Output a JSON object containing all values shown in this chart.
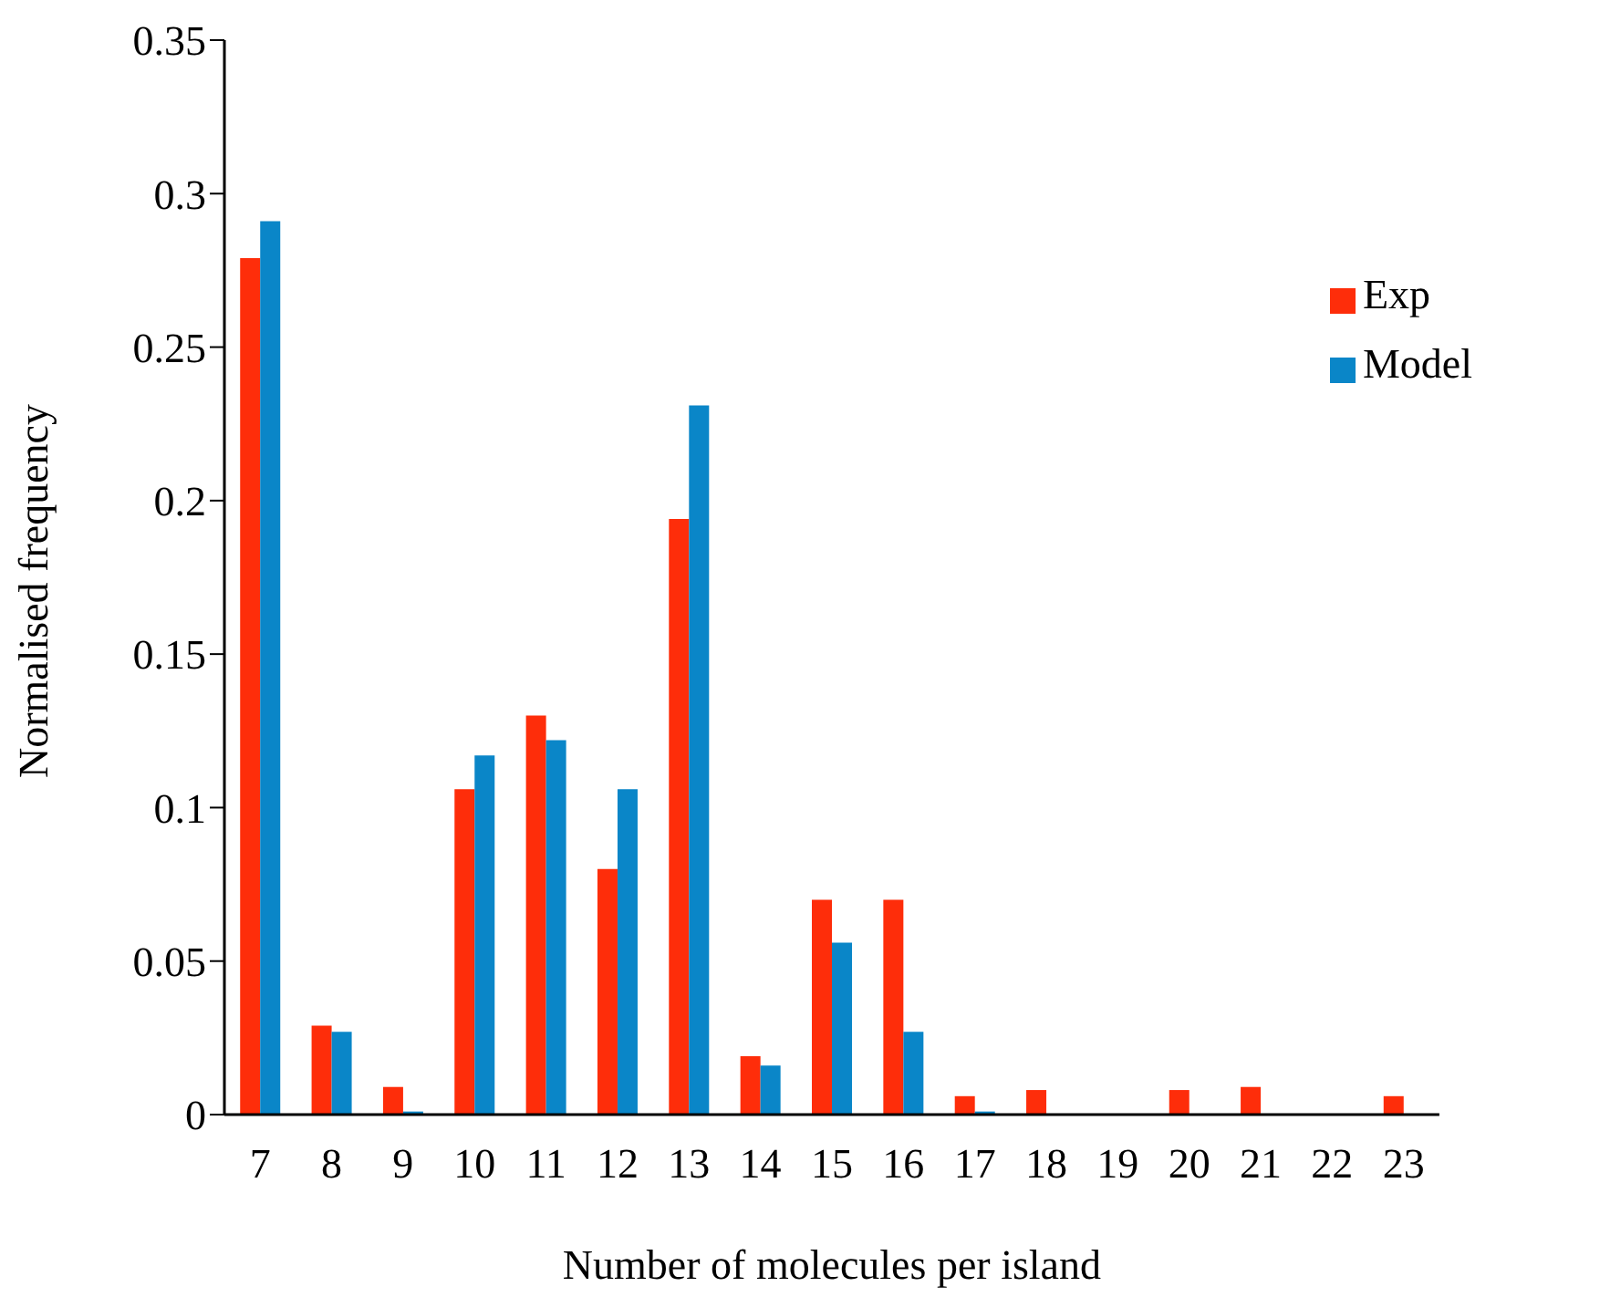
{
  "chart_data": {
    "type": "bar",
    "xlabel": "Number of molecules per island",
    "ylabel": "Normalised frequency",
    "categories": [
      "7",
      "8",
      "9",
      "10",
      "11",
      "12",
      "13",
      "14",
      "15",
      "16",
      "17",
      "18",
      "19",
      "20",
      "21",
      "22",
      "23"
    ],
    "series": [
      {
        "name": "Exp",
        "color": "#fe2d0a",
        "values": [
          0.279,
          0.029,
          0.009,
          0.106,
          0.13,
          0.08,
          0.194,
          0.019,
          0.07,
          0.07,
          0.006,
          0.008,
          0,
          0.008,
          0.009,
          0,
          0.006
        ]
      },
      {
        "name": "Model",
        "color": "#0a86c8",
        "values": [
          0.291,
          0.027,
          0.001,
          0.117,
          0.122,
          0.106,
          0.231,
          0.016,
          0.056,
          0.027,
          0.001,
          0,
          0,
          0,
          0,
          0,
          0
        ]
      }
    ],
    "ylim": [
      0,
      0.35
    ],
    "yticks": [
      0,
      0.05,
      0.1,
      0.15,
      0.2,
      0.25,
      0.3,
      0.35
    ],
    "legend": "top right"
  }
}
